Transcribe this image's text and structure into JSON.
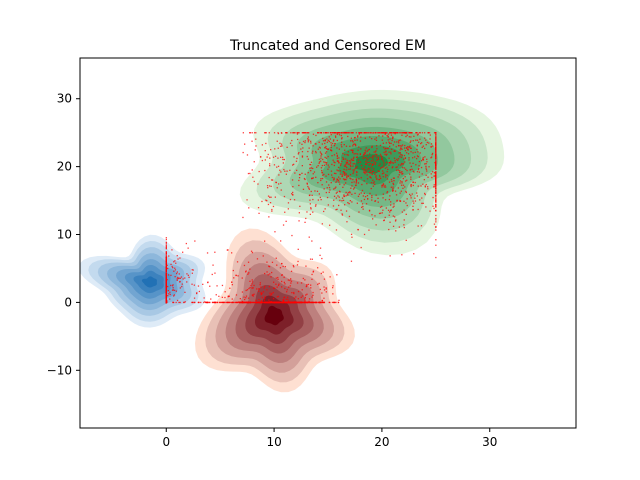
{
  "chart_data": {
    "type": "scatter",
    "title": "Truncated and Censored EM",
    "xlabel": "",
    "ylabel": "",
    "xlim": [
      -8,
      38
    ],
    "ylim": [
      -18.5,
      36
    ],
    "xticks": [
      0,
      10,
      20,
      30
    ],
    "yticks": [
      -10,
      0,
      10,
      20,
      30
    ],
    "xtick_labels": [
      "0",
      "10",
      "20",
      "30"
    ],
    "ytick_labels": [
      "−10",
      "0",
      "10",
      "20",
      "30"
    ],
    "grid": false,
    "legend": "none",
    "density_components": [
      {
        "colormap": "Blues",
        "center": [
          -1.5,
          3
        ],
        "spread": [
          2.3,
          2.6
        ],
        "color_light": "#deebf7",
        "color_dark": "#2171b5"
      },
      {
        "colormap": "Reds",
        "center": [
          10,
          -2
        ],
        "spread": [
          3.0,
          4.5
        ],
        "color_light": "#fee0d2",
        "color_dark": "#67000d"
      },
      {
        "colormap": "Greens",
        "center": [
          19,
          20.5
        ],
        "spread": [
          5.5,
          4.5
        ],
        "color_light": "#e5f5e0",
        "color_dark": "#238b45"
      }
    ],
    "observed_samples": {
      "color": "#ff0000",
      "groups": [
        {
          "region": "lower-left",
          "x_range": [
            0,
            16.2
          ],
          "y_range": [
            0,
            10.5
          ],
          "censor_floor_y": 0,
          "censor_floor_x": 0
        },
        {
          "region": "upper-right",
          "x_range": [
            7,
            25
          ],
          "y_range": [
            5,
            25
          ],
          "censor_ceiling_y": 25,
          "censor_ceiling_x": 25
        }
      ]
    }
  }
}
